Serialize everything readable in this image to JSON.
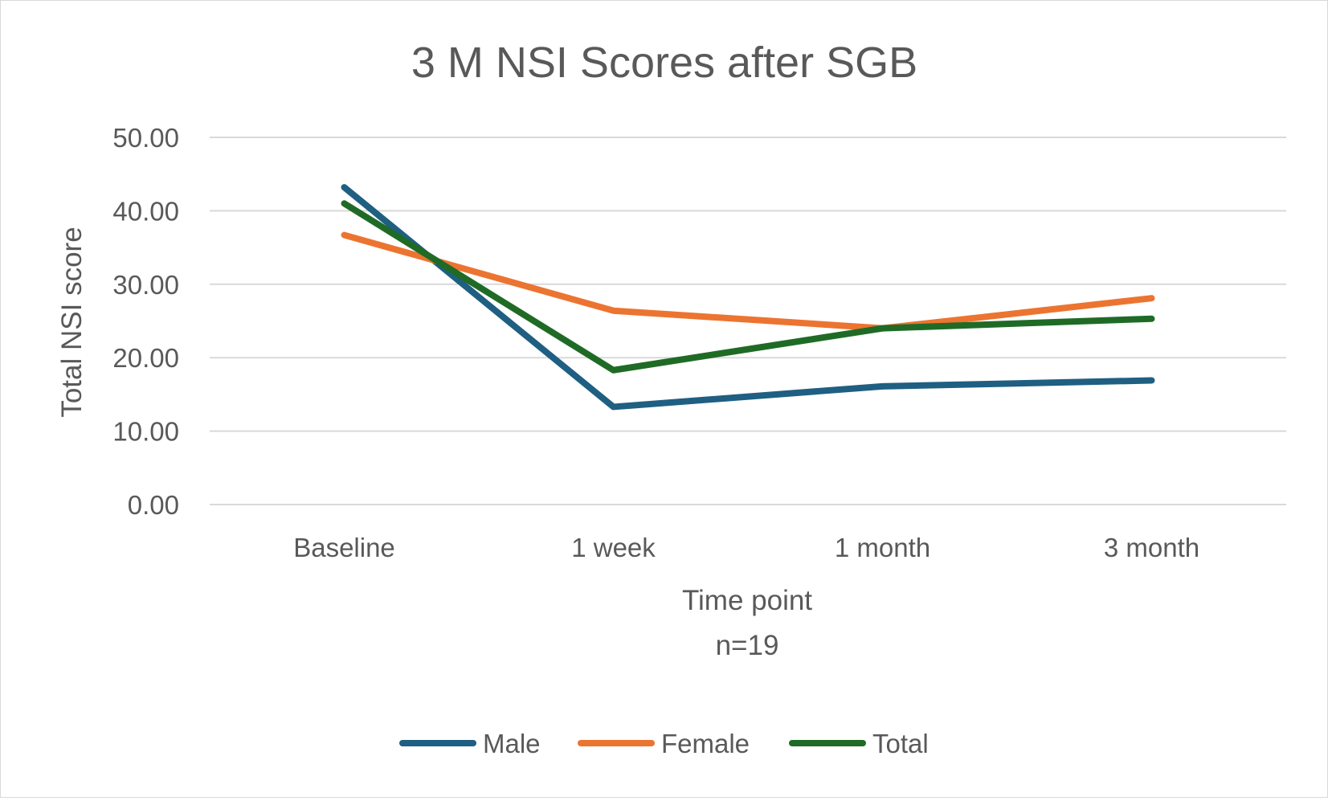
{
  "chart_data": {
    "type": "line",
    "title": "3 M NSI Scores after SGB",
    "xlabel": "Time point",
    "xlabel_note": "n=19",
    "ylabel": "Total NSI score",
    "categories": [
      "Baseline",
      "1 week",
      "1 month",
      "3 month"
    ],
    "ylim": [
      0,
      50
    ],
    "yticks": [
      "0.00",
      "10.00",
      "20.00",
      "30.00",
      "40.00",
      "50.00"
    ],
    "grid": true,
    "legend_position": "bottom",
    "series": [
      {
        "name": "Male",
        "color": "#1f5f82",
        "values": [
          43.2,
          13.3,
          16.1,
          16.9
        ]
      },
      {
        "name": "Female",
        "color": "#ec7431",
        "values": [
          36.7,
          26.4,
          24.0,
          28.1
        ]
      },
      {
        "name": "Total",
        "color": "#1f6b26",
        "values": [
          41.0,
          18.3,
          24.0,
          25.3
        ]
      }
    ]
  }
}
